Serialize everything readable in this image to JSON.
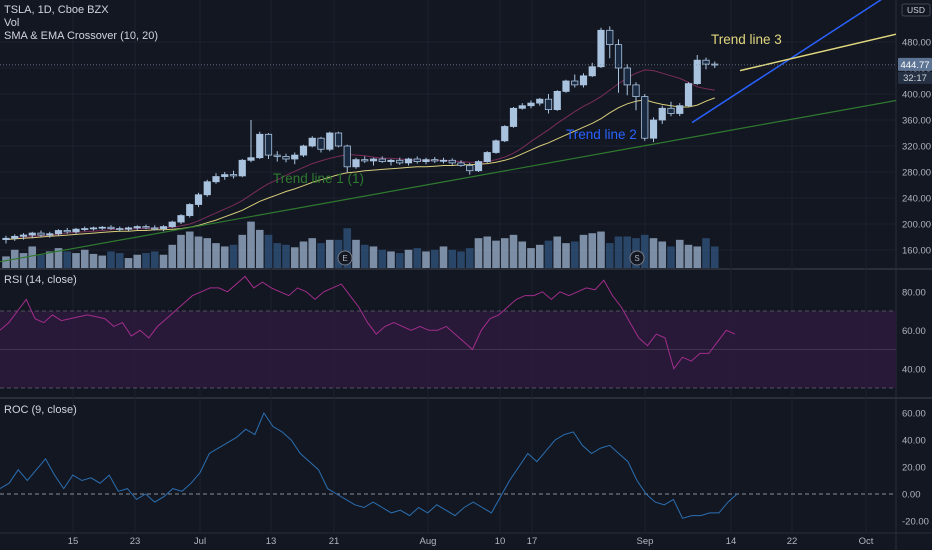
{
  "legend": {
    "title": "TSLA, 1D, Cboe BZX",
    "vol": "Vol",
    "ma": "SMA & EMA Crossover (10, 20)",
    "rsi": "RSI (14, close)",
    "roc": "ROC (9, close)"
  },
  "price_axis": {
    "currency": "USD",
    "last_price": "444.77",
    "countdown": "32:17",
    "last_price_color": "#5d7494"
  },
  "colors": {
    "background": "#131722",
    "candle": "#a9c3df",
    "candle_border": "#0b2e5e",
    "vol_up": "#8fa3bd",
    "vol_down": "#2e4f76",
    "sma": "#7b2d5a",
    "ema": "#d8cd7a",
    "rsi_line": "#a32d8c",
    "rsi_band": "#2a1a3a",
    "roc_line": "#2b6fb1",
    "trend1": "#2f7a2f",
    "trend2": "#2962ff",
    "trend3": "#e1d77e"
  },
  "annotations": [
    {
      "name": "trend-line-1-label",
      "text": "Trend line 1 (1)",
      "color": "#2f7a2f"
    },
    {
      "name": "trend-line-2-label",
      "text": "Trend line 2",
      "color": "#2962ff"
    },
    {
      "name": "trend-line-3-label",
      "text": "Trend line 3",
      "color": "#e1d77e"
    }
  ],
  "markers": [
    {
      "name": "earnings-marker",
      "text": "E"
    },
    {
      "name": "split-marker",
      "text": "S"
    }
  ],
  "chart_data": [
    {
      "type": "candlestick",
      "name": "price",
      "y_ticks": [
        160,
        200,
        240,
        280,
        320,
        360,
        400,
        440,
        480
      ],
      "ylim": [
        130,
        540
      ],
      "x_ticks": [
        "15",
        "23",
        "Jul",
        "13",
        "21",
        "Aug",
        "10",
        "17",
        "Sep",
        "14",
        "22",
        "Oct"
      ],
      "candles": [
        {
          "o": 176,
          "h": 182,
          "l": 170,
          "c": 178
        },
        {
          "o": 178,
          "h": 184,
          "l": 174,
          "c": 181
        },
        {
          "o": 181,
          "h": 186,
          "l": 176,
          "c": 183
        },
        {
          "o": 183,
          "h": 188,
          "l": 178,
          "c": 186
        },
        {
          "o": 186,
          "h": 190,
          "l": 180,
          "c": 183
        },
        {
          "o": 183,
          "h": 188,
          "l": 179,
          "c": 185
        },
        {
          "o": 185,
          "h": 192,
          "l": 182,
          "c": 190
        },
        {
          "o": 190,
          "h": 194,
          "l": 185,
          "c": 188
        },
        {
          "o": 188,
          "h": 194,
          "l": 185,
          "c": 192
        },
        {
          "o": 192,
          "h": 196,
          "l": 189,
          "c": 193
        },
        {
          "o": 193,
          "h": 196,
          "l": 190,
          "c": 194
        },
        {
          "o": 194,
          "h": 197,
          "l": 191,
          "c": 195
        },
        {
          "o": 195,
          "h": 198,
          "l": 191,
          "c": 193
        },
        {
          "o": 193,
          "h": 196,
          "l": 189,
          "c": 192
        },
        {
          "o": 192,
          "h": 196,
          "l": 189,
          "c": 194
        },
        {
          "o": 194,
          "h": 198,
          "l": 191,
          "c": 196
        },
        {
          "o": 196,
          "h": 199,
          "l": 192,
          "c": 194
        },
        {
          "o": 194,
          "h": 198,
          "l": 190,
          "c": 193
        },
        {
          "o": 193,
          "h": 198,
          "l": 189,
          "c": 196
        },
        {
          "o": 196,
          "h": 205,
          "l": 194,
          "c": 203
        },
        {
          "o": 203,
          "h": 215,
          "l": 200,
          "c": 213
        },
        {
          "o": 213,
          "h": 232,
          "l": 210,
          "c": 230
        },
        {
          "o": 230,
          "h": 248,
          "l": 226,
          "c": 245
        },
        {
          "o": 245,
          "h": 268,
          "l": 242,
          "c": 265
        },
        {
          "o": 265,
          "h": 278,
          "l": 262,
          "c": 273
        },
        {
          "o": 273,
          "h": 280,
          "l": 268,
          "c": 276
        },
        {
          "o": 276,
          "h": 282,
          "l": 270,
          "c": 274
        },
        {
          "o": 274,
          "h": 300,
          "l": 272,
          "c": 298
        },
        {
          "o": 298,
          "h": 360,
          "l": 295,
          "c": 302
        },
        {
          "o": 302,
          "h": 342,
          "l": 300,
          "c": 338
        },
        {
          "o": 338,
          "h": 340,
          "l": 300,
          "c": 306
        },
        {
          "o": 306,
          "h": 312,
          "l": 296,
          "c": 304
        },
        {
          "o": 304,
          "h": 308,
          "l": 295,
          "c": 300
        },
        {
          "o": 300,
          "h": 310,
          "l": 292,
          "c": 306
        },
        {
          "o": 306,
          "h": 322,
          "l": 303,
          "c": 320
        },
        {
          "o": 320,
          "h": 335,
          "l": 318,
          "c": 332
        },
        {
          "o": 332,
          "h": 334,
          "l": 310,
          "c": 315
        },
        {
          "o": 315,
          "h": 342,
          "l": 312,
          "c": 340
        },
        {
          "o": 340,
          "h": 342,
          "l": 318,
          "c": 320
        },
        {
          "o": 320,
          "h": 322,
          "l": 280,
          "c": 288
        },
        {
          "o": 288,
          "h": 302,
          "l": 285,
          "c": 299
        },
        {
          "o": 299,
          "h": 304,
          "l": 294,
          "c": 297
        },
        {
          "o": 297,
          "h": 302,
          "l": 290,
          "c": 300
        },
        {
          "o": 300,
          "h": 304,
          "l": 294,
          "c": 296
        },
        {
          "o": 296,
          "h": 300,
          "l": 290,
          "c": 298
        },
        {
          "o": 298,
          "h": 302,
          "l": 291,
          "c": 294
        },
        {
          "o": 294,
          "h": 302,
          "l": 290,
          "c": 300
        },
        {
          "o": 300,
          "h": 304,
          "l": 293,
          "c": 296
        },
        {
          "o": 296,
          "h": 302,
          "l": 292,
          "c": 299
        },
        {
          "o": 299,
          "h": 303,
          "l": 294,
          "c": 297
        },
        {
          "o": 297,
          "h": 302,
          "l": 293,
          "c": 298
        },
        {
          "o": 298,
          "h": 301,
          "l": 291,
          "c": 294
        },
        {
          "o": 294,
          "h": 298,
          "l": 288,
          "c": 290
        },
        {
          "o": 290,
          "h": 294,
          "l": 276,
          "c": 282
        },
        {
          "o": 282,
          "h": 298,
          "l": 280,
          "c": 296
        },
        {
          "o": 296,
          "h": 312,
          "l": 294,
          "c": 310
        },
        {
          "o": 310,
          "h": 330,
          "l": 308,
          "c": 328
        },
        {
          "o": 328,
          "h": 352,
          "l": 326,
          "c": 350
        },
        {
          "o": 350,
          "h": 380,
          "l": 348,
          "c": 378
        },
        {
          "o": 378,
          "h": 386,
          "l": 376,
          "c": 382
        },
        {
          "o": 382,
          "h": 390,
          "l": 378,
          "c": 386
        },
        {
          "o": 386,
          "h": 394,
          "l": 382,
          "c": 392
        },
        {
          "o": 392,
          "h": 400,
          "l": 370,
          "c": 376
        },
        {
          "o": 376,
          "h": 406,
          "l": 374,
          "c": 404
        },
        {
          "o": 404,
          "h": 422,
          "l": 402,
          "c": 420
        },
        {
          "o": 420,
          "h": 430,
          "l": 410,
          "c": 414
        },
        {
          "o": 414,
          "h": 432,
          "l": 410,
          "c": 428
        },
        {
          "o": 428,
          "h": 448,
          "l": 426,
          "c": 442
        },
        {
          "o": 442,
          "h": 502,
          "l": 440,
          "c": 498
        },
        {
          "o": 498,
          "h": 504,
          "l": 455,
          "c": 476
        },
        {
          "o": 476,
          "h": 484,
          "l": 402,
          "c": 440
        },
        {
          "o": 440,
          "h": 446,
          "l": 398,
          "c": 414
        },
        {
          "o": 414,
          "h": 418,
          "l": 375,
          "c": 396
        },
        {
          "o": 396,
          "h": 400,
          "l": 328,
          "c": 332
        },
        {
          "o": 332,
          "h": 364,
          "l": 326,
          "c": 360
        },
        {
          "o": 360,
          "h": 382,
          "l": 354,
          "c": 378
        },
        {
          "o": 378,
          "h": 388,
          "l": 366,
          "c": 370
        },
        {
          "o": 370,
          "h": 386,
          "l": 366,
          "c": 382
        },
        {
          "o": 382,
          "h": 418,
          "l": 380,
          "c": 416
        },
        {
          "o": 416,
          "h": 460,
          "l": 414,
          "c": 452
        },
        {
          "o": 452,
          "h": 456,
          "l": 438,
          "c": 446
        },
        {
          "o": 446,
          "h": 450,
          "l": 440,
          "c": 444.77
        }
      ],
      "volume": [
        14,
        22,
        18,
        26,
        16,
        20,
        24,
        20,
        18,
        22,
        17,
        15,
        20,
        18,
        12,
        16,
        18,
        20,
        16,
        28,
        40,
        44,
        38,
        36,
        30,
        26,
        28,
        40,
        56,
        46,
        40,
        30,
        28,
        25,
        32,
        36,
        30,
        34,
        34,
        48,
        34,
        28,
        26,
        22,
        20,
        18,
        22,
        24,
        20,
        22,
        26,
        22,
        20,
        24,
        36,
        38,
        33,
        36,
        40,
        32,
        24,
        28,
        33,
        38,
        30,
        32,
        40,
        42,
        44,
        30,
        38,
        38,
        36,
        40,
        36,
        32,
        26,
        34,
        28,
        26,
        36,
        26
      ],
      "vol_max": 70,
      "sma": [
        176,
        178,
        179,
        181,
        182,
        183,
        184,
        186,
        187,
        188,
        189,
        190,
        191,
        192,
        192,
        193,
        193,
        194,
        194,
        195,
        197,
        200,
        205,
        211,
        217,
        223,
        229,
        236,
        245,
        254,
        262,
        268,
        275,
        281,
        287,
        293,
        297,
        301,
        304,
        307,
        306,
        305,
        303,
        301,
        301,
        300,
        299,
        298,
        298,
        298,
        298,
        297,
        296,
        295,
        295,
        296,
        299,
        303,
        309,
        317,
        327,
        336,
        345,
        355,
        364,
        373,
        381,
        388,
        396,
        406,
        416,
        425,
        432,
        437,
        436,
        432,
        428,
        424,
        418,
        411,
        408,
        406
      ],
      "ema": [
        176,
        177,
        178,
        179,
        180,
        181,
        182,
        183,
        184,
        185,
        186,
        187,
        188,
        189,
        189,
        190,
        190,
        191,
        191,
        192,
        193,
        195,
        198,
        202,
        206,
        211,
        216,
        221,
        228,
        235,
        240,
        245,
        250,
        254,
        259,
        264,
        268,
        272,
        276,
        279,
        280,
        282,
        283,
        284,
        285,
        286,
        287,
        288,
        288,
        289,
        290,
        290,
        291,
        291,
        292,
        293,
        295,
        298,
        302,
        308,
        314,
        320,
        325,
        331,
        337,
        343,
        349,
        355,
        362,
        371,
        379,
        385,
        389,
        391,
        387,
        384,
        382,
        380,
        380,
        383,
        389,
        394
      ]
    },
    {
      "type": "line",
      "name": "rsi",
      "y_ticks": [
        40,
        60,
        80
      ],
      "ylim": [
        20,
        90
      ],
      "bands": [
        70,
        50,
        30
      ],
      "values": [
        60,
        64,
        70,
        76,
        66,
        64,
        68,
        65,
        66,
        67,
        68,
        67,
        66,
        62,
        64,
        57,
        60,
        56,
        62,
        66,
        70,
        74,
        78,
        80,
        82,
        82,
        80,
        84,
        88,
        82,
        85,
        82,
        80,
        78,
        82,
        80,
        76,
        80,
        82,
        84,
        78,
        72,
        64,
        58,
        62,
        64,
        62,
        60,
        62,
        60,
        60,
        62,
        58,
        54,
        50,
        60,
        66,
        68,
        72,
        76,
        78,
        78,
        80,
        76,
        80,
        78,
        80,
        82,
        81,
        86,
        78,
        72,
        64,
        56,
        52,
        58,
        56,
        40,
        46,
        44,
        48,
        48,
        54,
        60,
        58
      ]
    },
    {
      "type": "line",
      "name": "roc",
      "y_ticks": [
        -20,
        0,
        20,
        40,
        60
      ],
      "ylim": [
        -27,
        68
      ],
      "zero_line": 0,
      "values": [
        4,
        8,
        18,
        10,
        18,
        26,
        14,
        4,
        14,
        10,
        12,
        8,
        14,
        2,
        4,
        -4,
        0,
        -6,
        -2,
        4,
        2,
        8,
        16,
        30,
        34,
        38,
        42,
        48,
        44,
        60,
        50,
        46,
        40,
        30,
        24,
        18,
        4,
        0,
        -4,
        -8,
        -10,
        -6,
        -10,
        -14,
        -12,
        -16,
        -10,
        -14,
        -8,
        -12,
        -16,
        -10,
        -6,
        -10,
        -14,
        -2,
        10,
        20,
        30,
        24,
        32,
        40,
        44,
        46,
        36,
        30,
        34,
        36,
        30,
        24,
        10,
        0,
        -6,
        -8,
        -4,
        -18,
        -16,
        -16,
        -14,
        -14,
        -6,
        0
      ]
    }
  ]
}
